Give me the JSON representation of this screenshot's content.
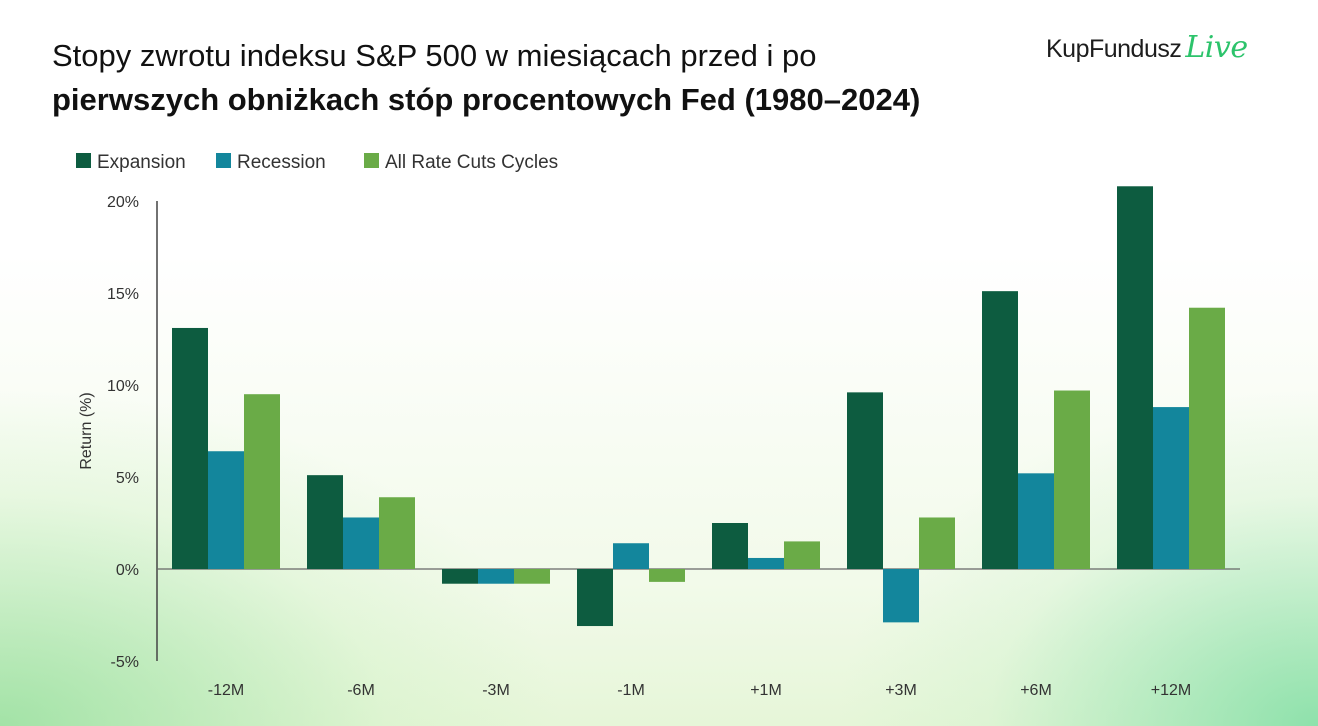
{
  "title": {
    "line1": "Stopy zwrotu indeksu S&P 500 w miesiącach przed i po",
    "line2": "pierwszych obniżkach stóp procentowych Fed (1980–2024)"
  },
  "logo": {
    "brand": "KupFundusz",
    "suffix": "Live"
  },
  "chart_data": {
    "type": "bar",
    "ylabel": "Return (%)",
    "ylim": [
      -5,
      20
    ],
    "yticks": [
      -5,
      0,
      5,
      10,
      15,
      20
    ],
    "ytick_labels": [
      "-5%",
      "0%",
      "5%",
      "10%",
      "15%",
      "20%"
    ],
    "categories": [
      "-12M",
      "-6M",
      "-3M",
      "-1M",
      "+1M",
      "+3M",
      "+6M",
      "+12M"
    ],
    "legend_position": "top-left",
    "grid": false,
    "series": [
      {
        "name": "Expansion",
        "color": "#0d5c40",
        "values": [
          13.1,
          5.1,
          -0.8,
          -3.1,
          2.5,
          9.6,
          15.1,
          20.8
        ]
      },
      {
        "name": "Recession",
        "color": "#13869c",
        "values": [
          6.4,
          2.8,
          -0.8,
          1.4,
          0.6,
          -2.9,
          5.2,
          8.8
        ]
      },
      {
        "name": "All Rate Cuts Cycles",
        "color": "#6aab47",
        "values": [
          9.5,
          3.9,
          -0.8,
          -0.7,
          1.5,
          2.8,
          9.7,
          14.2
        ]
      }
    ]
  }
}
